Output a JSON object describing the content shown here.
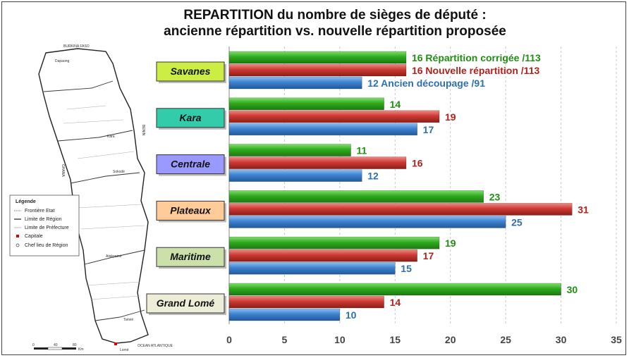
{
  "title_line1": "REPARTITION du nombre de sièges de député :",
  "title_line2": "ancienne répartition vs. nouvelle répartition proposée",
  "colors": {
    "corrigee": "#2e9a1e",
    "nouvelle": "#c0302e",
    "ancien": "#3a7bc8",
    "label_corrigee": "#1f8f12",
    "label_nouvelle": "#b3211b",
    "label_ancien": "#2c6fb5"
  },
  "map": {
    "top_label": "BURKINA FASO",
    "benin_label": "BENIN",
    "ghana_label": "GHANA",
    "ocean_label": "OCEAN ATLANTIQUE",
    "capital_label": "Lomé",
    "scale_0": "0",
    "scale_40": "40",
    "scale_80": "80",
    "scale_unit": "Km",
    "towns": [
      "Dapaong",
      "Kara",
      "Sokodé",
      "Atakpamé",
      "Tsévié"
    ],
    "legend": {
      "title": "Légende",
      "items": [
        "Frontière Etat",
        "Limite de Région",
        "Limite de Préfecture",
        "Capitale",
        "Chef lieu de Région"
      ]
    }
  },
  "chart_data": {
    "type": "bar",
    "orientation": "horizontal",
    "categories": [
      "Savanes",
      "Kara",
      "Centrale",
      "Plateaux",
      "Maritime",
      "Grand Lomé"
    ],
    "category_colors": [
      "#ccee44",
      "#33ccaa",
      "#9999ff",
      "#ffcc99",
      "#cce0aa",
      "#eeeed8"
    ],
    "series": [
      {
        "name": "Répartition corrigée /113",
        "values": [
          16,
          14,
          11,
          23,
          19,
          30
        ]
      },
      {
        "name": "Nouvelle répartition /113",
        "values": [
          16,
          19,
          16,
          31,
          17,
          14
        ]
      },
      {
        "name": "Ancien découpage /91",
        "values": [
          12,
          17,
          12,
          25,
          15,
          10
        ]
      }
    ],
    "xlim": [
      0,
      35
    ],
    "xticks": [
      0,
      5,
      10,
      15,
      20,
      25,
      30,
      35
    ],
    "grid": "vertical dashed",
    "legend": "inline labels next to Savanes bars"
  }
}
